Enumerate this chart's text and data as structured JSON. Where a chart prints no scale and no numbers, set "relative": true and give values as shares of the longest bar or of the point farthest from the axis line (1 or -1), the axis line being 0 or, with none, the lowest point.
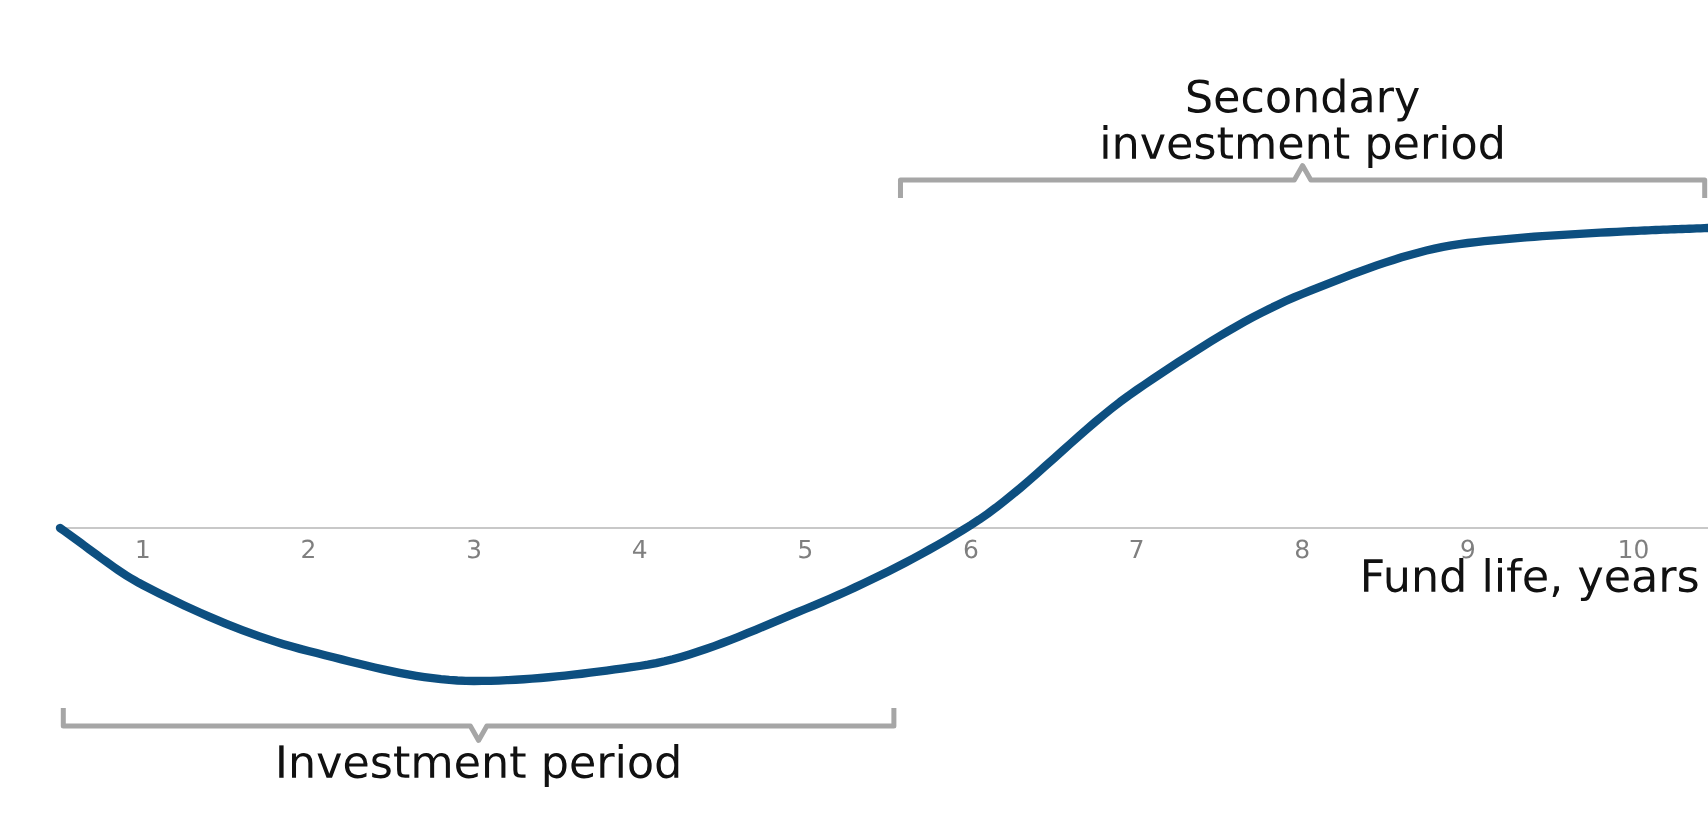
{
  "chart_data": {
    "type": "line",
    "relative": true,
    "xlabel": "Fund life, years",
    "x": [
      0.5,
      1,
      2,
      3,
      4,
      5,
      6,
      7,
      8,
      9,
      10,
      10.45
    ],
    "series": [
      {
        "color": "#0d4f80",
        "values": [
          0,
          -0.19,
          -0.41,
          -0.51,
          -0.46,
          -0.27,
          0.01,
          0.46,
          0.78,
          0.95,
          0.99,
          1
        ]
      }
    ],
    "xlim": [
      0.5,
      10.45
    ],
    "xticks": [
      1,
      2,
      3,
      4,
      5,
      6,
      7,
      8,
      9,
      10
    ],
    "annotations": [
      "Investment period",
      "Secondary\ninvestment period"
    ],
    "grid": false
  }
}
